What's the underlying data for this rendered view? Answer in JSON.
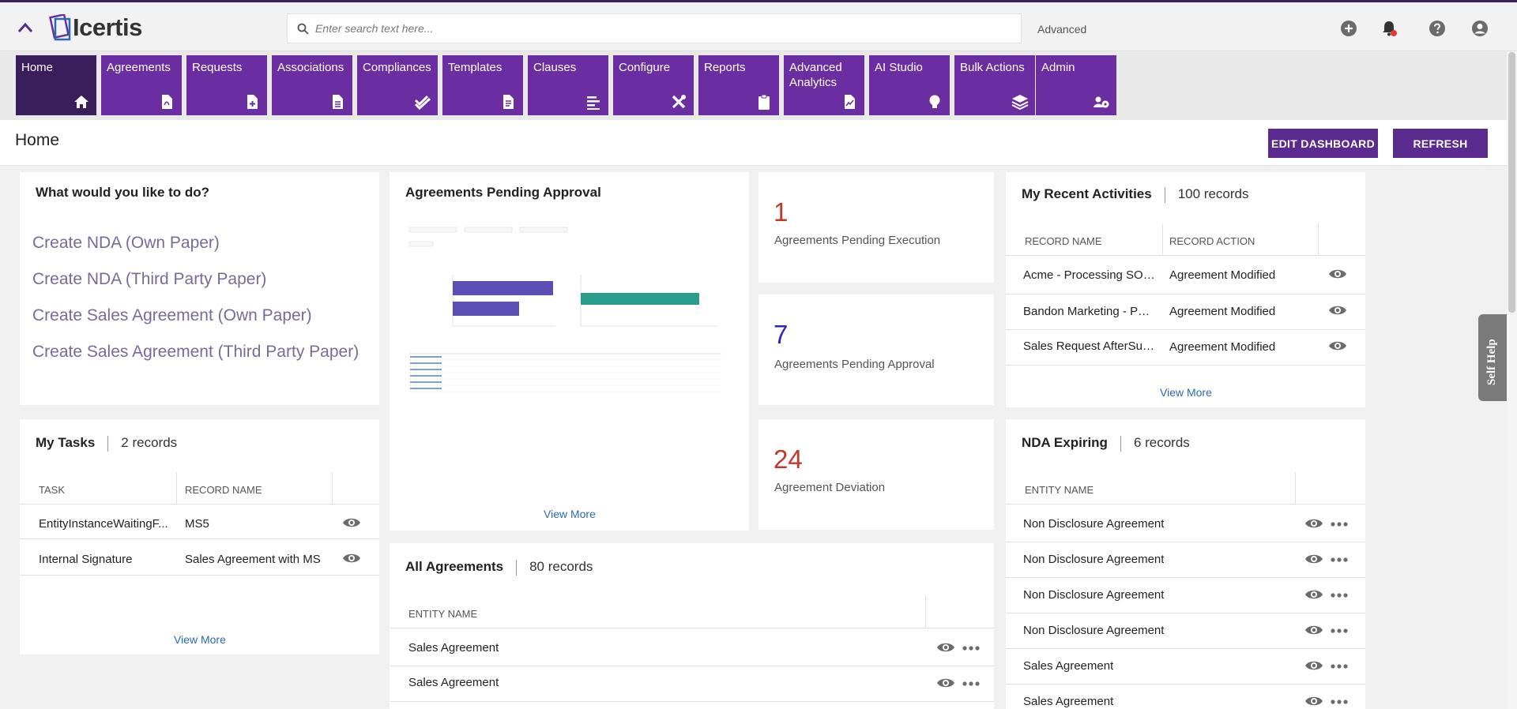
{
  "topbar": {
    "logo_text": "Icertis",
    "search_placeholder": "Enter search text here...",
    "advanced_label": "Advanced",
    "icons": [
      "add-icon",
      "bell-icon",
      "help-icon",
      "user-icon"
    ]
  },
  "nav": {
    "tiles": [
      {
        "label": "Home",
        "icon": "home-icon"
      },
      {
        "label": "Agreements",
        "icon": "pdf-doc-icon"
      },
      {
        "label": "Requests",
        "icon": "doc-plus-icon"
      },
      {
        "label": "Associations",
        "icon": "doc-icon"
      },
      {
        "label": "Compliances",
        "icon": "double-check-icon"
      },
      {
        "label": "Templates",
        "icon": "doc-lines-icon"
      },
      {
        "label": "Clauses",
        "icon": "align-left-icon"
      },
      {
        "label": "Configure",
        "icon": "tools-icon"
      },
      {
        "label": "Reports",
        "icon": "clipboard-icon"
      },
      {
        "label": "Advanced Analytics",
        "icon": "chart-doc-icon"
      },
      {
        "label": "AI Studio",
        "icon": "lightbulb-icon"
      },
      {
        "label": "Bulk Actions",
        "icon": "layers-icon"
      },
      {
        "label": "Admin",
        "icon": "users-gear-icon"
      }
    ]
  },
  "header": {
    "title": "Home",
    "edit_dashboard": "EDIT DASHBOARD",
    "refresh": "REFRESH"
  },
  "quick_actions": {
    "title": "What would you like to do?",
    "links": [
      "Create NDA (Own Paper)",
      "Create NDA (Third Party Paper)",
      "Create Sales Agreement (Own Paper)",
      "Create Sales Agreement (Third Party Paper)"
    ]
  },
  "my_tasks": {
    "title": "My Tasks",
    "count": "2 records",
    "columns": [
      "TASK",
      "RECORD NAME"
    ],
    "rows": [
      {
        "task": "EntityInstanceWaitingF...",
        "record": "MS5"
      },
      {
        "task": "Internal Signature",
        "record": "Sales Agreement with MS"
      }
    ],
    "view_more": "View More"
  },
  "pending_approval": {
    "title": "Agreements Pending Approval",
    "view_more": "View More"
  },
  "metrics": [
    {
      "value": "1",
      "label": "Agreements Pending Execution",
      "color": "#c0392b"
    },
    {
      "value": "7",
      "label": "Agreements Pending Approval",
      "color": "#2e2ab0"
    },
    {
      "value": "24",
      "label": "Agreement Deviation",
      "color": "#c0392b"
    }
  ],
  "all_agreements": {
    "title": "All Agreements",
    "count": "80 records",
    "column": "ENTITY NAME",
    "rows": [
      "Sales Agreement",
      "Sales Agreement"
    ]
  },
  "recent_activities": {
    "title": "My Recent Activities",
    "count": "100 records",
    "columns": [
      "RECORD NAME",
      "RECORD ACTION"
    ],
    "rows": [
      {
        "name": "Acme - Processing SOW ...",
        "action": "Agreement Modified"
      },
      {
        "name": "Bandon Marketing - PSA...",
        "action": "Agreement Modified"
      },
      {
        "name": "Sales Request AfterSupply",
        "action": "Agreement Modified"
      }
    ],
    "view_more": "View More"
  },
  "nda_expiring": {
    "title": "NDA Expiring",
    "count": "6 records",
    "column": "ENTITY NAME",
    "rows": [
      "Non Disclosure Agreement",
      "Non Disclosure Agreement",
      "Non Disclosure Agreement",
      "Non Disclosure Agreement",
      "Sales Agreement",
      "Sales Agreement"
    ]
  },
  "self_help": "Self Help",
  "colors": {
    "accent": "#6a2ea1",
    "active_tile": "#3a1e5c",
    "button": "#5b2a8e",
    "bar_purple": "#5b4fb5",
    "bar_teal": "#2a9d8f"
  }
}
